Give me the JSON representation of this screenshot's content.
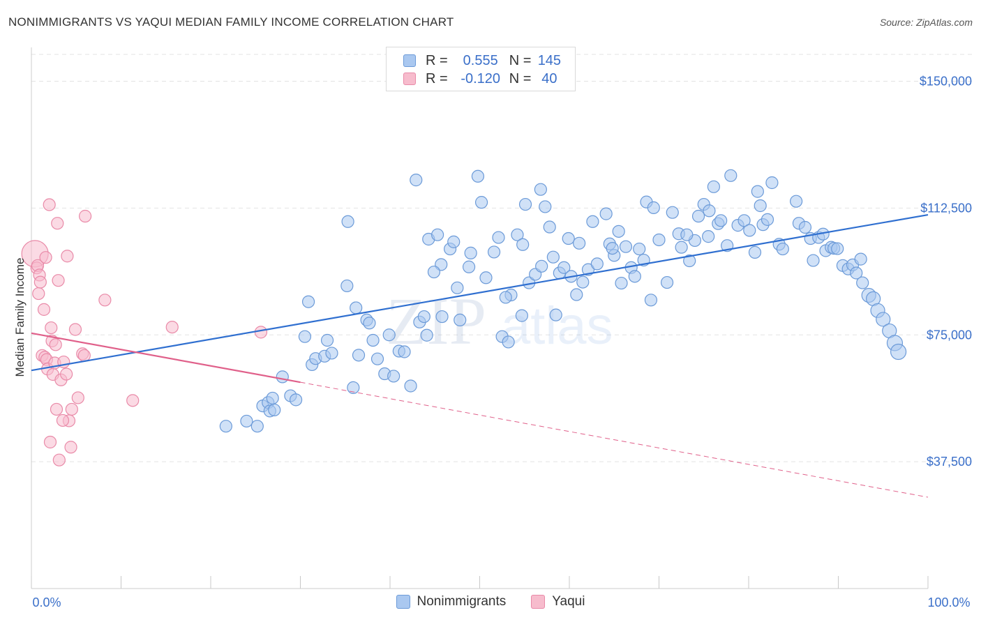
{
  "header": {
    "title": "NONIMMIGRANTS VS YAQUI MEDIAN FAMILY INCOME CORRELATION CHART",
    "source": "Source: ZipAtlas.com"
  },
  "legend": {
    "r_label": "R =",
    "n_label": "N =",
    "series": [
      {
        "name": "Nonimmigrants",
        "r": "0.555",
        "n": "145"
      },
      {
        "name": "Yaqui",
        "r": "-0.120",
        "n": "40"
      }
    ]
  },
  "watermark": {
    "zip": "ZIP",
    "atlas": "atlas"
  },
  "colors": {
    "blue_fill": "#aac8f0",
    "blue_stroke": "#6b9ad8",
    "blue_line": "#2f6fd0",
    "pink_fill": "#f7bccd",
    "pink_stroke": "#e98aa8",
    "pink_line": "#e0608a",
    "axis_text": "#3a6fc9",
    "grid": "#e3e3e3"
  },
  "chart_data": {
    "type": "scatter",
    "title": "NONIMMIGRANTS VS YAQUI MEDIAN FAMILY INCOME CORRELATION CHART",
    "xlabel": "",
    "ylabel": "Median Family Income",
    "xlim": [
      0,
      100
    ],
    "ylim": [
      0,
      160000
    ],
    "x_tick_labels": [
      "0.0%",
      "100.0%"
    ],
    "y_ticks": [
      37500,
      75000,
      112500,
      150000
    ],
    "y_tick_labels": [
      "$37,500",
      "$75,000",
      "$112,500",
      "$150,000"
    ],
    "series": [
      {
        "name": "Nonimmigrants",
        "trend": {
          "x": [
            0,
            100
          ],
          "y": [
            64500,
            110500
          ],
          "style": "solid"
        },
        "points": [
          [
            21.7,
            48000
          ],
          [
            24.0,
            49500
          ],
          [
            25.2,
            48000
          ],
          [
            25.8,
            54000
          ],
          [
            26.4,
            55000
          ],
          [
            26.6,
            52500
          ],
          [
            26.9,
            56300
          ],
          [
            28.0,
            62600
          ],
          [
            28.9,
            57000
          ],
          [
            29.5,
            55800
          ],
          [
            30.5,
            74500
          ],
          [
            30.9,
            84800
          ],
          [
            31.3,
            66200
          ],
          [
            31.7,
            68000
          ],
          [
            32.7,
            68700
          ],
          [
            33.5,
            69600
          ],
          [
            35.2,
            89500
          ],
          [
            35.3,
            108500
          ],
          [
            35.9,
            59400
          ],
          [
            36.2,
            83000
          ],
          [
            36.5,
            69000
          ],
          [
            37.4,
            79400
          ],
          [
            37.7,
            78500
          ],
          [
            38.1,
            73400
          ],
          [
            38.6,
            67900
          ],
          [
            39.4,
            63500
          ],
          [
            39.9,
            75000
          ],
          [
            40.4,
            62800
          ],
          [
            41.0,
            70200
          ],
          [
            41.6,
            70000
          ],
          [
            42.3,
            59900
          ],
          [
            42.9,
            120800
          ],
          [
            43.3,
            78800
          ],
          [
            43.8,
            80400
          ],
          [
            44.1,
            74900
          ],
          [
            44.3,
            103300
          ],
          [
            45.3,
            104600
          ],
          [
            45.7,
            95800
          ],
          [
            45.8,
            80400
          ],
          [
            46.7,
            100400
          ],
          [
            47.1,
            102500
          ],
          [
            47.5,
            88900
          ],
          [
            47.8,
            79400
          ],
          [
            48.8,
            95100
          ],
          [
            49.8,
            121900
          ],
          [
            50.2,
            114200
          ],
          [
            50.7,
            91900
          ],
          [
            51.6,
            99500
          ],
          [
            52.1,
            103800
          ],
          [
            52.5,
            74500
          ],
          [
            53.2,
            72900
          ],
          [
            53.5,
            86800
          ],
          [
            54.2,
            104600
          ],
          [
            54.7,
            80700
          ],
          [
            54.8,
            101700
          ],
          [
            55.1,
            113600
          ],
          [
            55.5,
            90400
          ],
          [
            56.2,
            92900
          ],
          [
            56.8,
            118000
          ],
          [
            56.9,
            95300
          ],
          [
            57.3,
            112900
          ],
          [
            57.8,
            106900
          ],
          [
            58.5,
            80900
          ],
          [
            58.9,
            93300
          ],
          [
            59.4,
            94900
          ],
          [
            59.9,
            103500
          ],
          [
            60.2,
            92300
          ],
          [
            60.8,
            86900
          ],
          [
            61.1,
            102100
          ],
          [
            62.1,
            94300
          ],
          [
            62.6,
            108500
          ],
          [
            63.1,
            96000
          ],
          [
            64.1,
            110800
          ],
          [
            64.5,
            101900
          ],
          [
            65.0,
            98500
          ],
          [
            65.5,
            105600
          ],
          [
            65.8,
            90300
          ],
          [
            66.3,
            101100
          ],
          [
            66.9,
            94900
          ],
          [
            67.3,
            92300
          ],
          [
            67.8,
            100400
          ],
          [
            68.6,
            114300
          ],
          [
            69.1,
            85300
          ],
          [
            69.4,
            112600
          ],
          [
            70.0,
            103100
          ],
          [
            70.9,
            90500
          ],
          [
            71.5,
            111200
          ],
          [
            72.2,
            104900
          ],
          [
            72.5,
            100900
          ],
          [
            73.4,
            96900
          ],
          [
            74.0,
            102900
          ],
          [
            74.4,
            110100
          ],
          [
            75.0,
            113600
          ],
          [
            75.5,
            104100
          ],
          [
            75.6,
            111700
          ],
          [
            76.1,
            118800
          ],
          [
            76.6,
            107900
          ],
          [
            76.9,
            108800
          ],
          [
            77.6,
            101400
          ],
          [
            78.0,
            122100
          ],
          [
            78.8,
            107400
          ],
          [
            79.5,
            108800
          ],
          [
            80.1,
            105900
          ],
          [
            80.7,
            99400
          ],
          [
            81.0,
            117400
          ],
          [
            81.3,
            113200
          ],
          [
            81.6,
            107600
          ],
          [
            82.1,
            109100
          ],
          [
            82.6,
            120000
          ],
          [
            83.4,
            101800
          ],
          [
            83.8,
            100400
          ],
          [
            85.3,
            114500
          ],
          [
            85.6,
            108000
          ],
          [
            86.3,
            106800
          ],
          [
            86.9,
            103500
          ],
          [
            87.2,
            97000
          ],
          [
            87.8,
            103800
          ],
          [
            88.3,
            104800
          ],
          [
            88.6,
            99900
          ],
          [
            89.2,
            100900
          ],
          [
            89.5,
            100600
          ],
          [
            89.9,
            100500
          ],
          [
            90.5,
            95500
          ],
          [
            91.1,
            94500
          ],
          [
            91.6,
            95700
          ],
          [
            92.0,
            93300
          ],
          [
            92.5,
            97400
          ],
          [
            92.7,
            90400
          ],
          [
            93.4,
            86700
          ],
          [
            93.9,
            85700
          ],
          [
            94.4,
            82200
          ],
          [
            95.0,
            79600
          ],
          [
            95.7,
            76200
          ],
          [
            96.3,
            72600
          ],
          [
            96.7,
            70000
          ],
          [
            27.1,
            52800
          ],
          [
            33.0,
            73400
          ],
          [
            44.9,
            93600
          ],
          [
            49.0,
            99200
          ],
          [
            52.9,
            86100
          ],
          [
            58.2,
            98000
          ],
          [
            61.5,
            90600
          ],
          [
            64.8,
            100600
          ],
          [
            68.3,
            97100
          ],
          [
            73.1,
            104600
          ]
        ]
      },
      {
        "name": "Yaqui",
        "trend": {
          "x": [
            0,
            30
          ],
          "y": [
            75500,
            61000
          ],
          "style": "solid",
          "extension": {
            "x": [
              30,
              100
            ],
            "y": [
              61000,
              27000
            ],
            "style": "dashed"
          }
        },
        "points": [
          [
            0.4,
            99000
          ],
          [
            0.6,
            94800
          ],
          [
            0.7,
            95500
          ],
          [
            0.8,
            87200
          ],
          [
            0.9,
            92700
          ],
          [
            1.0,
            90600
          ],
          [
            1.2,
            68900
          ],
          [
            1.4,
            82500
          ],
          [
            1.5,
            68400
          ],
          [
            1.6,
            97900
          ],
          [
            1.7,
            67700
          ],
          [
            1.8,
            64900
          ],
          [
            2.0,
            113500
          ],
          [
            2.2,
            77100
          ],
          [
            2.3,
            73200
          ],
          [
            2.4,
            63300
          ],
          [
            2.6,
            66700
          ],
          [
            2.7,
            72100
          ],
          [
            2.9,
            108000
          ],
          [
            3.0,
            91100
          ],
          [
            3.3,
            61700
          ],
          [
            3.6,
            67000
          ],
          [
            3.9,
            63400
          ],
          [
            4.0,
            98300
          ],
          [
            4.2,
            49600
          ],
          [
            4.5,
            53000
          ],
          [
            4.9,
            76600
          ],
          [
            5.2,
            56400
          ],
          [
            5.7,
            69400
          ],
          [
            5.9,
            68900
          ],
          [
            6.0,
            110100
          ],
          [
            8.2,
            85300
          ],
          [
            2.1,
            43300
          ],
          [
            2.8,
            53000
          ],
          [
            3.1,
            38000
          ],
          [
            3.5,
            49700
          ],
          [
            4.4,
            41800
          ],
          [
            11.3,
            55600
          ],
          [
            15.7,
            77300
          ],
          [
            25.6,
            75800
          ]
        ]
      }
    ]
  }
}
